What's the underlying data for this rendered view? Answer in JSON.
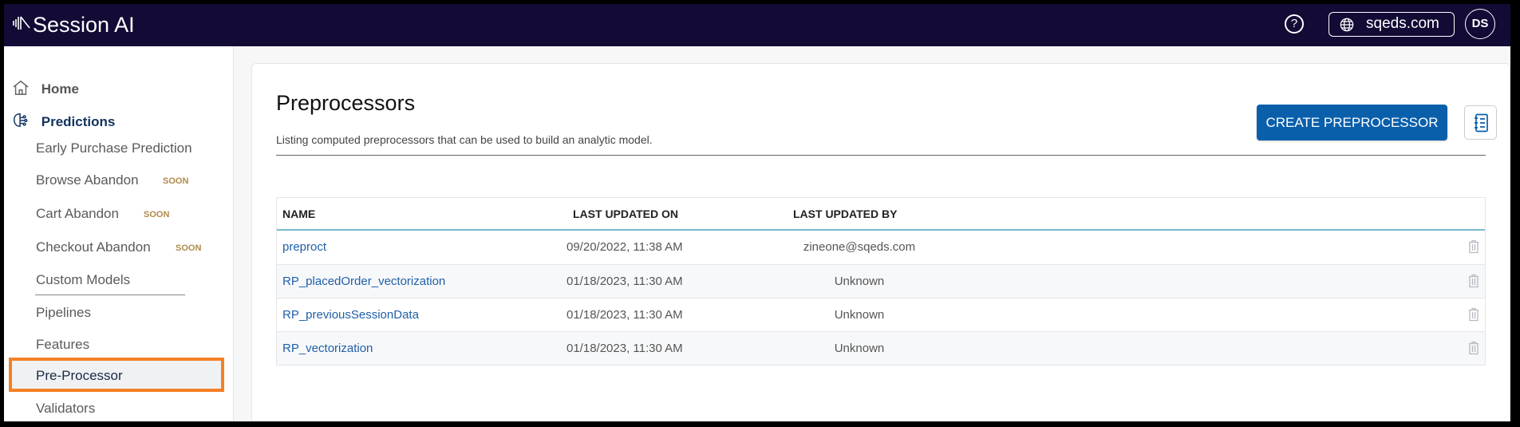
{
  "header": {
    "app_title": "Session AI",
    "domain": "sqeds.com",
    "avatar_initials": "DS",
    "bg_color": "#130a35"
  },
  "sidebar": {
    "home": "Home",
    "predictions": "Predictions",
    "items": [
      {
        "label": "Early Purchase Prediction"
      },
      {
        "label": "Browse Abandon",
        "badge": "SOON"
      },
      {
        "label": "Cart Abandon",
        "badge": "SOON"
      },
      {
        "label": "Checkout Abandon",
        "badge": "SOON"
      },
      {
        "label": "Custom Models"
      },
      {
        "label": "Pipelines"
      },
      {
        "label": "Features"
      },
      {
        "label": "Pre-Processor",
        "selected": true
      },
      {
        "label": "Validators"
      }
    ],
    "highlight_color": "#f58025"
  },
  "main": {
    "title": "Preprocessors",
    "subtitle": "Listing computed preprocessors that can be used to build an analytic model.",
    "create_button": "CREATE PREPROCESSOR",
    "accent_color": "#0a5fab",
    "table": {
      "columns": [
        "NAME",
        "LAST UPDATED ON",
        "LAST UPDATED BY"
      ],
      "rows": [
        {
          "name": "preproct",
          "updated_on": "09/20/2022, 11:38 AM",
          "updated_by": "zineone@sqeds.com"
        },
        {
          "name": "RP_placedOrder_vectorization",
          "updated_on": "01/18/2023, 11:30 AM",
          "updated_by": "Unknown"
        },
        {
          "name": "RP_previousSessionData",
          "updated_on": "01/18/2023, 11:30 AM",
          "updated_by": "Unknown"
        },
        {
          "name": "RP_vectorization",
          "updated_on": "01/18/2023, 11:30 AM",
          "updated_by": "Unknown"
        }
      ]
    }
  }
}
